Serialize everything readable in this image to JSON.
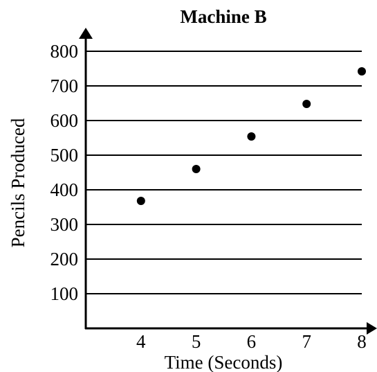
{
  "chart_data": {
    "type": "scatter",
    "title": "Machine B",
    "xlabel": "Time (Seconds)",
    "ylabel": "Pencils Produced",
    "x_ticks": [
      "4",
      "5",
      "6",
      "7",
      "8"
    ],
    "y_ticks": [
      "100",
      "200",
      "300",
      "400",
      "500",
      "600",
      "700",
      "800"
    ],
    "xlim": [
      3,
      8
    ],
    "ylim": [
      0,
      800
    ],
    "grid": "horizontal",
    "legend": "none",
    "colors": {
      "axis": "#000000",
      "grid": "#000000",
      "point": "#000000"
    },
    "series": [
      {
        "x": [
          4,
          5,
          6,
          7,
          8
        ],
        "y": [
          368,
          460,
          554,
          648,
          742
        ]
      }
    ]
  }
}
